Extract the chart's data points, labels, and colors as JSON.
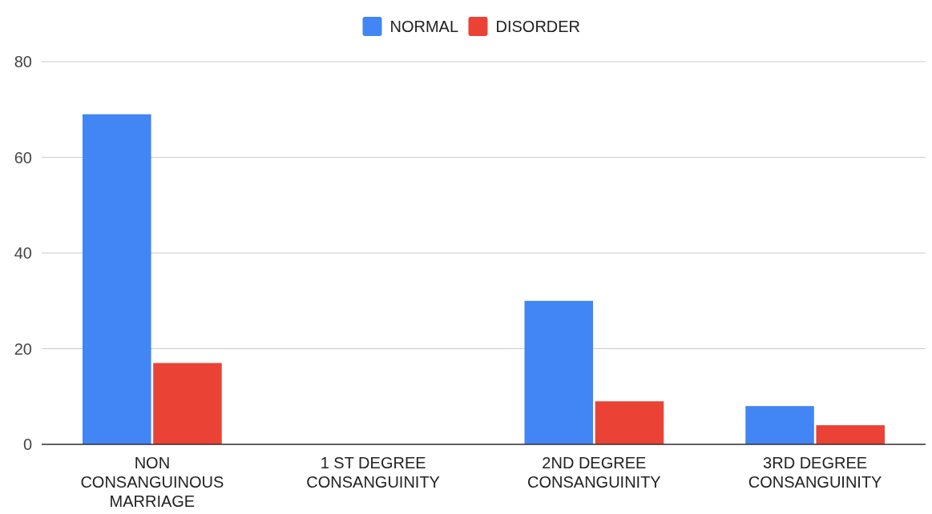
{
  "chart_data": {
    "type": "bar",
    "categories": [
      "NON CONSANGUINOUS MARRIAGE",
      "1 ST DEGREE CONSANGUINITY",
      "2ND DEGREE CONSANGUINITY",
      "3RD DEGREE CONSANGUINITY"
    ],
    "series": [
      {
        "name": "NORMAL",
        "color": "#4285f4",
        "values": [
          69,
          0,
          30,
          8
        ]
      },
      {
        "name": "DISORDER",
        "color": "#ea4335",
        "values": [
          17,
          0,
          9,
          4
        ]
      }
    ],
    "ylim": [
      0,
      80
    ],
    "yticks": [
      0,
      20,
      40,
      60,
      80
    ],
    "grid": "y",
    "legend": "top"
  }
}
